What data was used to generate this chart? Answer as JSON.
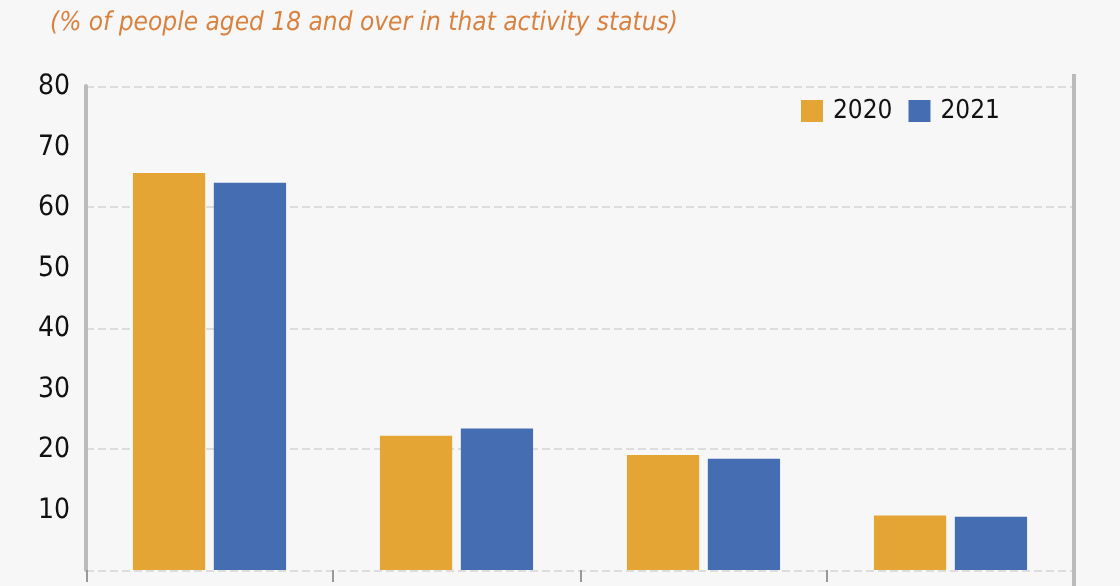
{
  "chart_data": {
    "type": "bar",
    "subtitle": "(% of people aged 18 and over in that activity status)",
    "categories": [
      null,
      null,
      null,
      null
    ],
    "series": [
      {
        "name": "2020",
        "color": "#e5a535",
        "values": [
          65.6,
          22.2,
          19,
          9
        ]
      },
      {
        "name": "2021",
        "color": "#456eb2",
        "values": [
          64,
          23.4,
          18.4,
          8.8
        ]
      }
    ],
    "ylim": [
      0,
      80
    ],
    "yticks": [
      10,
      20,
      30,
      40,
      50,
      60,
      70,
      80
    ],
    "grid": "y",
    "legend": "top right"
  }
}
